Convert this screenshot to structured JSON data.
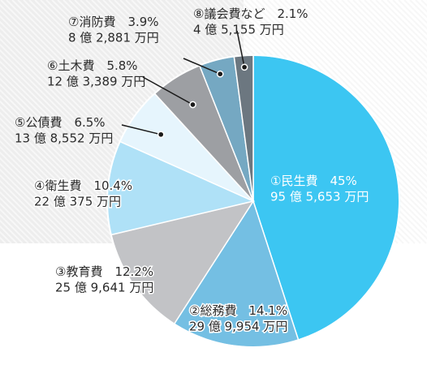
{
  "chart_data": {
    "type": "pie",
    "title": "",
    "start": "top-clockwise",
    "slices": [
      {
        "label": "①民生費",
        "percent": 45,
        "value": "95 億 5,653 万円",
        "color": "#3cc6f2"
      },
      {
        "label": "②総務費",
        "percent": 14.1,
        "value": "29 億 9,954 万円",
        "color": "#74bfe3"
      },
      {
        "label": "③教育費",
        "percent": 12.2,
        "value": "25 億 9,641 万円",
        "color": "#c2c3c6"
      },
      {
        "label": "④衛生費",
        "percent": 10.4,
        "value": "22 億 375 万円",
        "color": "#afe1f7"
      },
      {
        "label": "⑤公債費",
        "percent": 6.5,
        "value": "13 億 8,552 万円",
        "color": "#e6f5fd"
      },
      {
        "label": "⑥土木費",
        "percent": 5.8,
        "value": "12 億 3,389 万円",
        "color": "#9d9fa3"
      },
      {
        "label": "⑦消防費",
        "percent": 3.9,
        "value": "8 億 2,881 万円",
        "color": "#75a8c2"
      },
      {
        "label": "⑧議会費など",
        "percent": 2.1,
        "value": "4 億 5,155 万円",
        "color": "#6c7780"
      }
    ]
  }
}
